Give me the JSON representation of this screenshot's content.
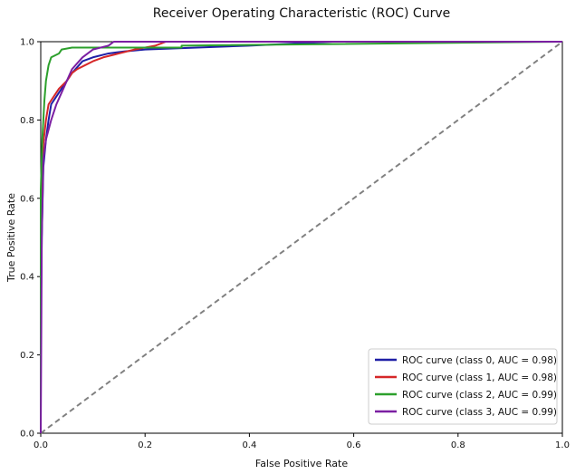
{
  "chart_data": {
    "type": "line",
    "title": "Receiver Operating Characteristic (ROC) Curve",
    "xlabel": "False Positive Rate",
    "ylabel": "True Positive Rate",
    "xlim": [
      0.0,
      1.0
    ],
    "ylim": [
      0.0,
      1.0
    ],
    "xticks": [
      "0.0",
      "0.2",
      "0.4",
      "0.6",
      "0.8",
      "1.0"
    ],
    "yticks": [
      "0.0",
      "0.2",
      "0.4",
      "0.6",
      "0.8",
      "1.0"
    ],
    "grid": false,
    "legend_position": "lower-right",
    "reference_line": {
      "style": "dashed",
      "color": "#808080",
      "points": [
        [
          0,
          0
        ],
        [
          1,
          1
        ]
      ]
    },
    "series": [
      {
        "name": "ROC curve (class 0, AUC = 0.98)",
        "color": "#1f1fa6",
        "points": [
          [
            0,
            0
          ],
          [
            0,
            0.27
          ],
          [
            0.002,
            0.5
          ],
          [
            0.005,
            0.68
          ],
          [
            0.01,
            0.75
          ],
          [
            0.015,
            0.8
          ],
          [
            0.02,
            0.84
          ],
          [
            0.03,
            0.86
          ],
          [
            0.04,
            0.88
          ],
          [
            0.05,
            0.9
          ],
          [
            0.06,
            0.92
          ],
          [
            0.08,
            0.95
          ],
          [
            0.1,
            0.96
          ],
          [
            0.13,
            0.97
          ],
          [
            0.16,
            0.975
          ],
          [
            0.2,
            0.98
          ],
          [
            0.3,
            0.985
          ],
          [
            0.4,
            0.99
          ],
          [
            0.56,
            1.0
          ],
          [
            1.0,
            1.0
          ]
        ]
      },
      {
        "name": "ROC curve (class 1, AUC = 0.98)",
        "color": "#d62728",
        "points": [
          [
            0,
            0
          ],
          [
            0,
            0.38
          ],
          [
            0.002,
            0.6
          ],
          [
            0.005,
            0.74
          ],
          [
            0.01,
            0.8
          ],
          [
            0.015,
            0.84
          ],
          [
            0.025,
            0.86
          ],
          [
            0.035,
            0.88
          ],
          [
            0.05,
            0.9
          ],
          [
            0.06,
            0.92
          ],
          [
            0.07,
            0.93
          ],
          [
            0.085,
            0.94
          ],
          [
            0.1,
            0.95
          ],
          [
            0.12,
            0.96
          ],
          [
            0.15,
            0.97
          ],
          [
            0.18,
            0.98
          ],
          [
            0.22,
            0.99
          ],
          [
            0.24,
            1.0
          ],
          [
            1.0,
            1.0
          ]
        ]
      },
      {
        "name": "ROC curve (class 2, AUC = 0.99)",
        "color": "#2ca02c",
        "points": [
          [
            0,
            0
          ],
          [
            0,
            0.62
          ],
          [
            0.003,
            0.75
          ],
          [
            0.007,
            0.85
          ],
          [
            0.01,
            0.9
          ],
          [
            0.015,
            0.94
          ],
          [
            0.02,
            0.96
          ],
          [
            0.035,
            0.97
          ],
          [
            0.04,
            0.98
          ],
          [
            0.06,
            0.985
          ],
          [
            0.27,
            0.985
          ],
          [
            0.27,
            0.99
          ],
          [
            1.0,
            1.0
          ]
        ]
      },
      {
        "name": "ROC curve (class 3, AUC = 0.99)",
        "color": "#7b1fa2",
        "points": [
          [
            0,
            0
          ],
          [
            0.002,
            0.5
          ],
          [
            0.005,
            0.7
          ],
          [
            0.01,
            0.75
          ],
          [
            0.02,
            0.8
          ],
          [
            0.03,
            0.84
          ],
          [
            0.04,
            0.87
          ],
          [
            0.05,
            0.9
          ],
          [
            0.06,
            0.93
          ],
          [
            0.08,
            0.96
          ],
          [
            0.1,
            0.98
          ],
          [
            0.13,
            0.99
          ],
          [
            0.14,
            1.0
          ],
          [
            1.0,
            1.0
          ]
        ]
      }
    ]
  }
}
